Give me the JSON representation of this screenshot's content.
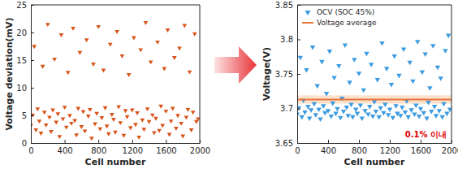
{
  "chart_data": [
    {
      "type": "scatter",
      "xlabel": "Cell number",
      "ylabel": "Voltage deviation(mV)",
      "color": "#d95319",
      "marker": "triangle-down",
      "xlim": [
        0,
        2000
      ],
      "xticks": [
        0,
        400,
        800,
        1200,
        1600,
        2000
      ],
      "ylim": [
        0,
        25
      ],
      "yticks": [
        0,
        5,
        10,
        15,
        20,
        25
      ],
      "x": [
        0,
        20,
        40,
        60,
        80,
        100,
        120,
        140,
        160,
        180,
        200,
        220,
        240,
        260,
        280,
        300,
        320,
        340,
        360,
        380,
        400,
        420,
        440,
        460,
        480,
        500,
        520,
        540,
        560,
        580,
        600,
        620,
        640,
        660,
        680,
        700,
        720,
        740,
        760,
        780,
        800,
        820,
        840,
        860,
        880,
        900,
        920,
        940,
        960,
        980,
        1000,
        1020,
        1040,
        1060,
        1080,
        1100,
        1120,
        1140,
        1160,
        1180,
        1200,
        1220,
        1240,
        1260,
        1280,
        1300,
        1320,
        1340,
        1360,
        1380,
        1400,
        1420,
        1440,
        1460,
        1480,
        1500,
        1520,
        1540,
        1560,
        1580,
        1600,
        1620,
        1640,
        1660,
        1680,
        1700,
        1720,
        1740,
        1760,
        1780,
        1800,
        1820,
        1840,
        1860,
        1880,
        1900,
        1920,
        1940,
        1960,
        1980
      ],
      "values": [
        3.2,
        5.1,
        17.5,
        2.4,
        6.2,
        4.0,
        1.8,
        13.9,
        5.6,
        3.3,
        21.5,
        4.7,
        2.1,
        6.0,
        15.2,
        3.8,
        5.3,
        1.2,
        19.6,
        4.4,
        6.5,
        2.9,
        12.8,
        5.0,
        3.6,
        20.8,
        4.1,
        1.5,
        6.3,
        16.4,
        3.0,
        5.7,
        2.2,
        18.7,
        4.9,
        6.1,
        0.9,
        14.3,
        3.5,
        5.4,
        21.1,
        2.6,
        4.6,
        13.2,
        6.4,
        3.1,
        1.7,
        17.9,
        5.2,
        4.3,
        2.0,
        20.2,
        6.6,
        3.7,
        15.8,
        1.4,
        5.9,
        4.8,
        12.4,
        2.8,
        6.0,
        19.1,
        3.4,
        5.5,
        1.1,
        16.9,
        4.2,
        2.5,
        21.8,
        6.2,
        3.9,
        14.7,
        5.1,
        1.9,
        4.5,
        18.3,
        2.3,
        6.7,
        3.2,
        13.5,
        5.8,
        20.5,
        1.6,
        4.0,
        6.3,
        15.5,
        2.7,
        5.0,
        17.2,
        3.6,
        1.3,
        21.3,
        4.7,
        6.1,
        12.9,
        2.4,
        5.6,
        19.8,
        3.9,
        4.4
      ]
    },
    {
      "type": "scatter",
      "xlabel": "Cell number",
      "ylabel": "Voltage(V)",
      "xlim": [
        0,
        2000
      ],
      "xticks": [
        0,
        400,
        800,
        1200,
        1600,
        2000
      ],
      "ylim": [
        3.65,
        3.85
      ],
      "yticks": [
        3.65,
        3.7,
        3.75,
        3.8,
        3.85
      ],
      "legend": "top-left",
      "band": [
        3.707,
        3.719
      ],
      "annotation": "0.1% 이내",
      "series": [
        {
          "name": "OCV (SOC 45%)",
          "type": "scatter",
          "marker": "triangle-down",
          "color": "#3d9be0",
          "x": [
            0,
            20,
            40,
            60,
            80,
            100,
            120,
            140,
            160,
            180,
            200,
            220,
            240,
            260,
            280,
            300,
            320,
            340,
            360,
            380,
            400,
            420,
            440,
            460,
            480,
            500,
            520,
            540,
            560,
            580,
            600,
            620,
            640,
            660,
            680,
            700,
            720,
            740,
            760,
            780,
            800,
            820,
            840,
            860,
            880,
            900,
            920,
            940,
            960,
            980,
            1000,
            1020,
            1040,
            1060,
            1080,
            1100,
            1120,
            1140,
            1160,
            1180,
            1200,
            1220,
            1240,
            1260,
            1280,
            1300,
            1320,
            1340,
            1360,
            1380,
            1400,
            1420,
            1440,
            1460,
            1480,
            1500,
            1520,
            1540,
            1560,
            1580,
            1600,
            1620,
            1640,
            1660,
            1680,
            1700,
            1720,
            1740,
            1760,
            1780,
            1800,
            1820,
            1840,
            1860,
            1880,
            1900,
            1920,
            1940,
            1960,
            1980
          ],
          "values": [
            3.692,
            3.701,
            3.774,
            3.688,
            3.712,
            3.695,
            3.756,
            3.703,
            3.686,
            3.698,
            3.789,
            3.707,
            3.691,
            3.733,
            3.699,
            3.685,
            3.768,
            3.704,
            3.694,
            3.722,
            3.697,
            3.783,
            3.689,
            3.708,
            3.745,
            3.693,
            3.7,
            3.762,
            3.687,
            3.715,
            3.696,
            3.792,
            3.702,
            3.69,
            3.738,
            3.706,
            3.688,
            3.771,
            3.699,
            3.693,
            3.751,
            3.705,
            3.686,
            3.727,
            3.697,
            3.78,
            3.692,
            3.703,
            3.764,
            3.689,
            3.71,
            3.696,
            3.742,
            3.688,
            3.701,
            3.795,
            3.694,
            3.706,
            3.758,
            3.691,
            3.699,
            3.735,
            3.687,
            3.776,
            3.704,
            3.693,
            3.748,
            3.69,
            3.702,
            3.786,
            3.695,
            3.711,
            3.688,
            3.767,
            3.698,
            3.74,
            3.692,
            3.705,
            3.797,
            3.689,
            3.7,
            3.753,
            3.694,
            3.779,
            3.686,
            3.709,
            3.73,
            3.696,
            3.791,
            3.703,
            3.69,
            3.76,
            3.697,
            3.744,
            3.688,
            3.707,
            3.784,
            3.693,
            3.806,
            3.699
          ]
        },
        {
          "name": "Voltage average",
          "type": "line",
          "line_style": "solid",
          "color": "#e8743b",
          "x": [
            0,
            2000
          ],
          "values": [
            3.713,
            3.713
          ]
        }
      ]
    }
  ]
}
